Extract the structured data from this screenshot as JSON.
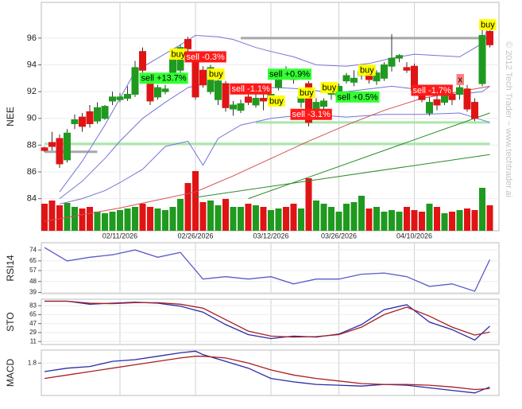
{
  "chart_data": [
    {
      "type": "candlestick",
      "ylabel": "NEE",
      "watermark": "© 2012 Tech Trader ~ www.techtrader.ai",
      "ylim": [
        81.6,
        98.67
      ],
      "yticks": [
        84,
        86,
        88,
        90,
        92,
        94,
        96
      ],
      "xticks": [
        {
          "value": 10,
          "label": "02/11/2026"
        },
        {
          "value": 20,
          "label": "02/26/2026"
        },
        {
          "value": 30,
          "label": "03/12/2026"
        },
        {
          "value": 39,
          "label": "03/26/2026"
        },
        {
          "value": 49,
          "label": "04/10/2026"
        }
      ],
      "up_color": "#1f9a1f",
      "down_color": "#e01414",
      "ohlc": [
        [
          87.8,
          87.9,
          87.5,
          87.6
        ],
        [
          88.2,
          89.0,
          87.6,
          87.9
        ],
        [
          88.5,
          88.8,
          86.3,
          86.6
        ],
        [
          86.9,
          89.2,
          86.7,
          88.9
        ],
        [
          89.6,
          90.3,
          89.2,
          89.9
        ],
        [
          90.1,
          90.4,
          89.0,
          89.4
        ],
        [
          90.5,
          91.0,
          89.3,
          89.6
        ],
        [
          89.8,
          91.2,
          89.6,
          90.8
        ],
        [
          90.0,
          91.0,
          89.9,
          90.9
        ],
        [
          91.3,
          92.0,
          91.0,
          91.6
        ],
        [
          91.4,
          91.9,
          91.2,
          91.6
        ],
        [
          91.5,
          92.4,
          91.3,
          91.8
        ],
        [
          91.8,
          94.3,
          91.6,
          93.8
        ],
        [
          95.0,
          95.3,
          93.4,
          93.6
        ],
        [
          93.1,
          93.4,
          91.0,
          91.3
        ],
        [
          91.6,
          92.5,
          91.4,
          92.3
        ],
        [
          92.0,
          92.5,
          91.8,
          92.2
        ],
        [
          93.0,
          94.7,
          92.8,
          94.4
        ],
        [
          93.6,
          95.5,
          93.4,
          95.3
        ],
        [
          95.9,
          96.1,
          95.0,
          95.2
        ],
        [
          94.6,
          94.9,
          91.4,
          91.6
        ],
        [
          93.6,
          93.9,
          92.3,
          92.5
        ],
        [
          92.0,
          94.0,
          91.8,
          93.8
        ],
        [
          91.4,
          92.9,
          91.0,
          92.8
        ],
        [
          92.6,
          92.8,
          90.5,
          90.8
        ],
        [
          90.7,
          91.3,
          90.2,
          91.0
        ],
        [
          90.6,
          91.4,
          90.4,
          91.1
        ],
        [
          91.6,
          92.0,
          91.0,
          91.2
        ],
        [
          91.0,
          91.8,
          90.8,
          91.5
        ],
        [
          91.5,
          92.4,
          90.6,
          91.3
        ],
        [
          91.4,
          92.0,
          90.9,
          91.8
        ],
        [
          92.3,
          93.6,
          92.1,
          93.3
        ],
        [
          93.6,
          93.9,
          92.9,
          93.1
        ],
        [
          93.1,
          93.5,
          92.6,
          92.9
        ],
        [
          91.2,
          91.9,
          90.8,
          91.6
        ],
        [
          92.6,
          92.8,
          89.4,
          89.7
        ],
        [
          90.6,
          91.5,
          90.2,
          91.2
        ],
        [
          90.9,
          91.5,
          90.6,
          91.3
        ],
        [
          91.8,
          92.2,
          91.4,
          92.0
        ],
        [
          91.7,
          92.6,
          91.5,
          92.4
        ],
        [
          92.8,
          93.4,
          92.6,
          93.2
        ],
        [
          92.7,
          93.6,
          92.4,
          93.0
        ],
        [
          93.2,
          93.8,
          92.9,
          93.5
        ],
        [
          93.2,
          93.7,
          92.6,
          92.9
        ],
        [
          92.8,
          93.6,
          92.5,
          93.4
        ],
        [
          93.0,
          94.2,
          92.8,
          94.0
        ],
        [
          93.9,
          96.3,
          93.5,
          94.5
        ],
        [
          94.5,
          94.8,
          94.2,
          94.7
        ],
        [
          93.8,
          94.2,
          93.4,
          93.6
        ],
        [
          93.9,
          94.1,
          91.8,
          92.1
        ],
        [
          92.2,
          92.4,
          91.2,
          91.4
        ],
        [
          90.4,
          91.6,
          90.2,
          91.2
        ],
        [
          91.4,
          91.8,
          90.6,
          91.0
        ],
        [
          91.2,
          92.3,
          91.0,
          92.0
        ],
        [
          91.8,
          92.3,
          91.0,
          91.4
        ],
        [
          91.8,
          92.5,
          91.4,
          92.3
        ],
        [
          92.2,
          92.5,
          90.5,
          90.7
        ],
        [
          91.2,
          91.5,
          89.8,
          90.0
        ],
        [
          92.6,
          96.8,
          92.4,
          96.2
        ],
        [
          96.5,
          96.6,
          95.3,
          95.5
        ]
      ],
      "volume": [
        34,
        38,
        32,
        35,
        30,
        28,
        30,
        24,
        22,
        24,
        26,
        28,
        30,
        34,
        30,
        28,
        26,
        30,
        40,
        60,
        75,
        36,
        38,
        32,
        40,
        30,
        30,
        34,
        32,
        30,
        26,
        28,
        30,
        34,
        28,
        66,
        38,
        34,
        30,
        24,
        34,
        36,
        44,
        28,
        30,
        24,
        26,
        24,
        30,
        26,
        24,
        34,
        30,
        22,
        24,
        26,
        28,
        26,
        54,
        32
      ],
      "overlays": [
        {
          "color": "#7474d8",
          "x": [
            2,
            5,
            8,
            10,
            12,
            15,
            18,
            20,
            23,
            25,
            28,
            30,
            33,
            36,
            40,
            43,
            46,
            49,
            52,
            55,
            58,
            59
          ],
          "values": [
            84.5,
            86.8,
            89.5,
            91.5,
            93.5,
            94.5,
            95.5,
            96.2,
            96.1,
            95.9,
            95.3,
            95.0,
            94.6,
            94.0,
            93.9,
            94.1,
            94.5,
            94.8,
            94.7,
            94.6,
            95.6,
            97.2
          ]
        },
        {
          "color": "#7474d8",
          "x": [
            2,
            5,
            8,
            10,
            13,
            16,
            19,
            22,
            25,
            28,
            31,
            34,
            37,
            40,
            43,
            46,
            49,
            52,
            55,
            58,
            59
          ],
          "values": [
            84.0,
            85.3,
            87.0,
            88.3,
            90.0,
            91.2,
            92.3,
            92.7,
            92.5,
            92.3,
            92.3,
            92.2,
            92.0,
            92.0,
            92.2,
            92.4,
            92.2,
            91.9,
            91.8,
            92.0,
            92.4
          ]
        },
        {
          "color": "#7474d8",
          "x": [
            2,
            5,
            8,
            10,
            13,
            16,
            19,
            21,
            23,
            26,
            30,
            35,
            40,
            45,
            50,
            55,
            59
          ],
          "values": [
            83.6,
            84.0,
            84.6,
            85.2,
            86.2,
            87.9,
            88.3,
            86.5,
            88.5,
            89.5,
            90.0,
            90.3,
            90.1,
            90.3,
            90.3,
            90.4,
            89.7
          ]
        },
        {
          "color": "#d05050",
          "x": [
            0,
            10,
            20,
            25,
            30,
            35,
            40,
            45,
            50,
            55,
            59
          ],
          "values": [
            82.3,
            83.3,
            84.5,
            85.7,
            87.0,
            88.3,
            89.5,
            90.6,
            91.5,
            92.0,
            92.4
          ]
        },
        {
          "color": "#2a8a2a",
          "x": [
            27,
            59
          ],
          "values": [
            84.0,
            90.4
          ]
        },
        {
          "color": "#2a8a2a",
          "x": [
            20,
            59
          ],
          "values": [
            84.1,
            87.3
          ]
        }
      ],
      "levels": [
        {
          "value": 96.0,
          "from": 26,
          "to": 59,
          "color": "#a8a8a8"
        },
        {
          "value": 87.5,
          "from": 0,
          "to": 7,
          "color": "#a8a8a8"
        },
        {
          "value": 89.7,
          "from": 28,
          "to": 59,
          "color": "#a8e8a8"
        },
        {
          "value": 88.1,
          "from": 0,
          "to": 59,
          "color": "#a8e8a8"
        }
      ],
      "annotations": [
        {
          "text": "sell +13.7%",
          "index": 13,
          "price": 93.0,
          "color": "#33ff33"
        },
        {
          "text": "buy",
          "index": 17,
          "price": 94.8,
          "color": "#ffff00"
        },
        {
          "text": "sell -0.3%",
          "index": 19,
          "price": 94.6,
          "color": "#ff1a1a"
        },
        {
          "text": "buy",
          "index": 22,
          "price": 93.3,
          "color": "#ffff00"
        },
        {
          "text": "sell -1.1%",
          "index": 25,
          "price": 92.2,
          "color": "#ff1a1a"
        },
        {
          "text": "sell +0.9%",
          "index": 30,
          "price": 93.3,
          "color": "#33ff33"
        },
        {
          "text": "buy",
          "index": 30,
          "price": 91.3,
          "color": "#ffff00"
        },
        {
          "text": "sell -3.1%",
          "index": 33,
          "price": 90.3,
          "color": "#ff1a1a"
        },
        {
          "text": "buy",
          "index": 34,
          "price": 91.9,
          "color": "#ffff00"
        },
        {
          "text": "buy",
          "index": 37,
          "price": 92.3,
          "color": "#ffff00"
        },
        {
          "text": "sell +0.5%",
          "index": 39,
          "price": 91.6,
          "color": "#33ff33"
        },
        {
          "text": "buy",
          "index": 42,
          "price": 93.6,
          "color": "#ffff00"
        },
        {
          "text": "sell -1.7%",
          "index": 49,
          "price": 92.1,
          "color": "#ff1a1a"
        },
        {
          "text": "x",
          "index": 55,
          "price": 92.9,
          "color": "#ff8080"
        },
        {
          "text": "buy",
          "index": 58,
          "price": 97.0,
          "color": "#ffff00"
        }
      ]
    },
    {
      "type": "line",
      "ylabel": "RSI14",
      "ylim": [
        38,
        80
      ],
      "yticks": [
        39,
        48,
        57,
        65,
        74
      ],
      "x": [
        0,
        3,
        6,
        9,
        12,
        15,
        18,
        21,
        24,
        27,
        30,
        33,
        36,
        39,
        42,
        45,
        48,
        51,
        54,
        57,
        59
      ],
      "series": [
        {
          "color": "#5a5ac8",
          "values": [
            76,
            65,
            68,
            70,
            74,
            68,
            72,
            50,
            52,
            50,
            52,
            46,
            50,
            50,
            54,
            55,
            52,
            44,
            46,
            40,
            66
          ]
        }
      ]
    },
    {
      "type": "line",
      "ylabel": "STO",
      "ylim": [
        5,
        96
      ],
      "yticks": [
        11,
        29,
        47,
        65,
        83
      ],
      "x": [
        0,
        3,
        6,
        9,
        12,
        15,
        18,
        21,
        24,
        27,
        30,
        33,
        36,
        39,
        42,
        45,
        48,
        51,
        54,
        57,
        59
      ],
      "series": [
        {
          "color": "#2a2aa8",
          "values": [
            92,
            92,
            86,
            88,
            90,
            88,
            82,
            70,
            45,
            25,
            17,
            22,
            20,
            26,
            45,
            75,
            85,
            50,
            35,
            14,
            42
          ]
        },
        {
          "color": "#a82020",
          "values": [
            92,
            92,
            88,
            87,
            89,
            89,
            86,
            78,
            55,
            32,
            22,
            20,
            21,
            25,
            40,
            65,
            80,
            62,
            40,
            24,
            30
          ]
        }
      ]
    },
    {
      "type": "line",
      "ylabel": "MACD",
      "ylim": [
        -0.1,
        2.56
      ],
      "yticks": [
        1.8
      ],
      "x": [
        0,
        3,
        6,
        9,
        12,
        15,
        18,
        20,
        21,
        24,
        27,
        30,
        33,
        36,
        39,
        42,
        45,
        48,
        51,
        54,
        57,
        59
      ],
      "series": [
        {
          "color": "#2a2aa8",
          "values": [
            1.3,
            1.5,
            1.6,
            1.9,
            2.0,
            2.2,
            2.4,
            2.5,
            2.3,
            1.9,
            1.5,
            0.9,
            0.7,
            0.55,
            0.5,
            0.45,
            0.55,
            0.5,
            0.35,
            0.2,
            0.05,
            0.4
          ]
        },
        {
          "color": "#a82020",
          "values": [
            0.9,
            1.1,
            1.3,
            1.5,
            1.7,
            1.9,
            2.1,
            2.2,
            2.2,
            2.1,
            1.8,
            1.4,
            1.1,
            0.9,
            0.75,
            0.6,
            0.55,
            0.55,
            0.5,
            0.4,
            0.25,
            0.3
          ]
        }
      ]
    }
  ]
}
